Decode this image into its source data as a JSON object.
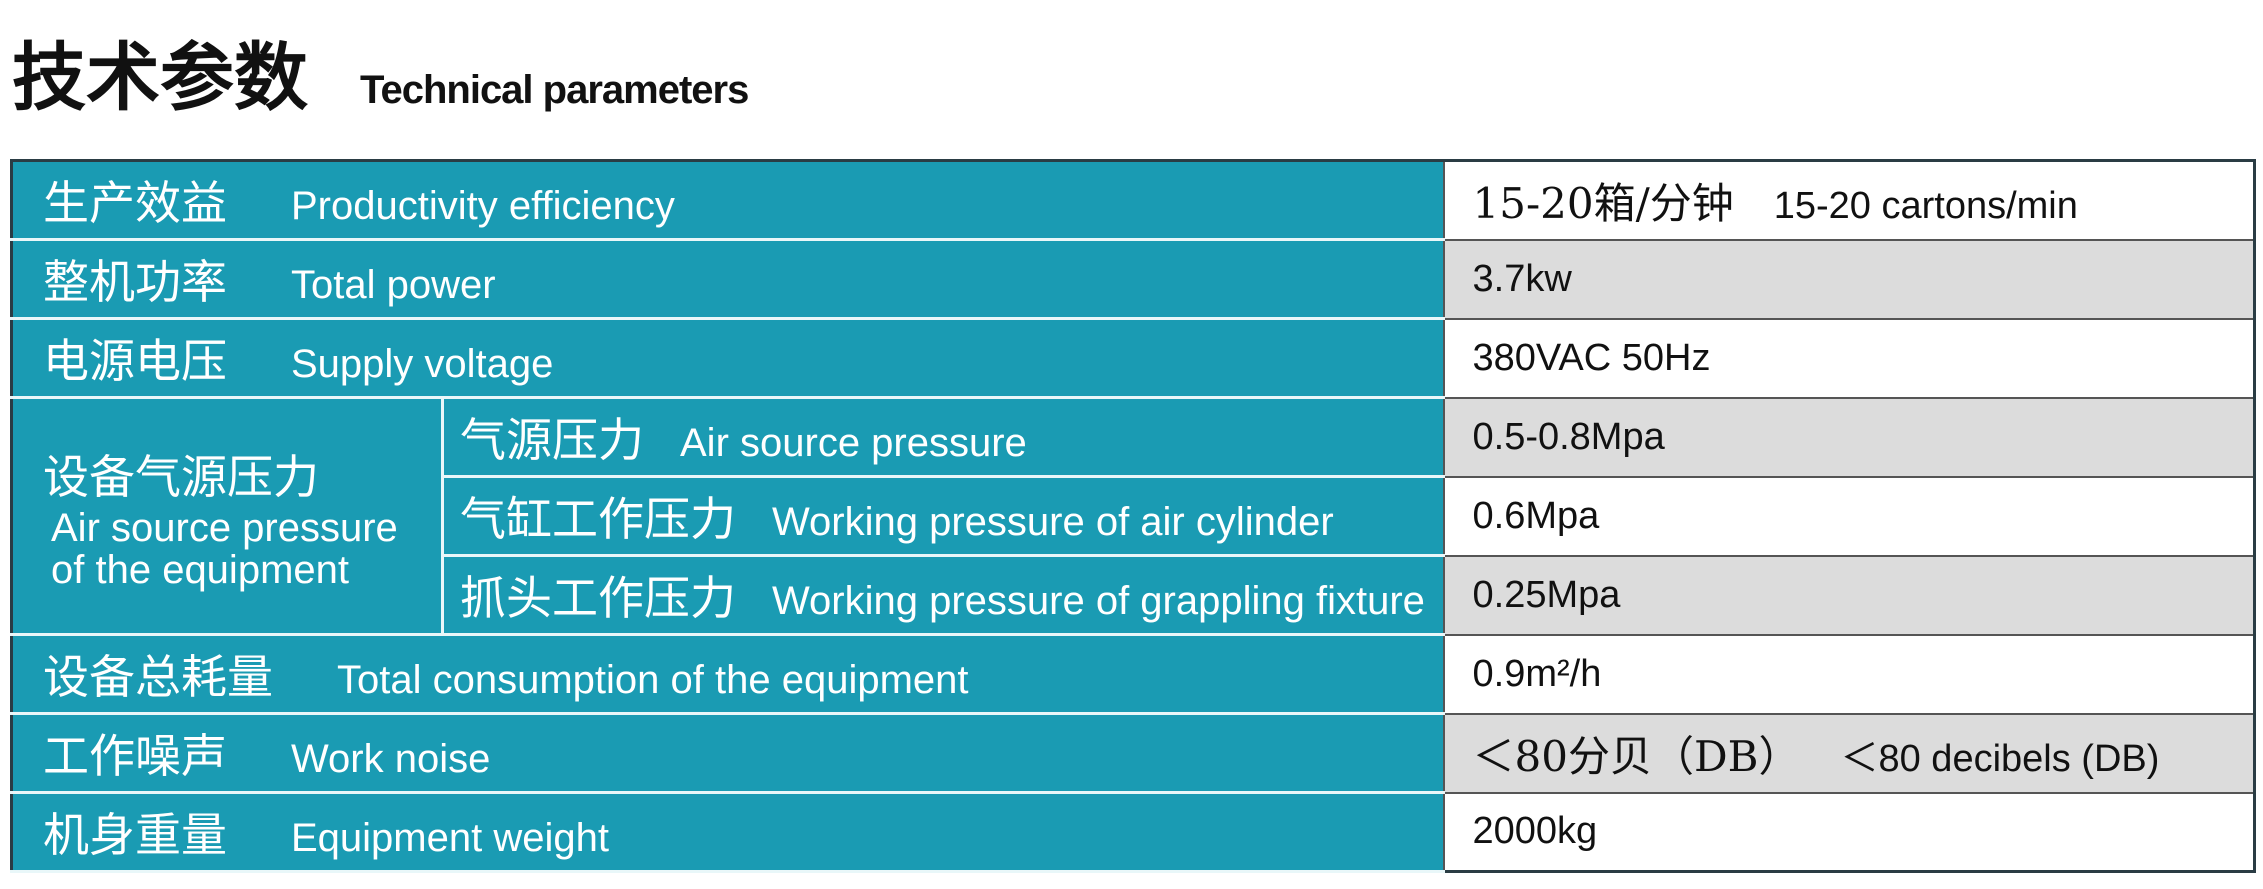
{
  "title": {
    "zh": "技术参数",
    "en": "Technical parameters"
  },
  "table": {
    "rows": [
      {
        "label_zh": "生产效益",
        "label_en": "Productivity efficiency",
        "value_zh": "15-20箱/分钟",
        "value": "15-20 cartons/min"
      },
      {
        "label_zh": "整机功率",
        "label_en": "Total power",
        "value": "3.7kw"
      },
      {
        "label_zh": "电源电压",
        "label_en": "Supply voltage",
        "value": "380VAC  50Hz"
      },
      {
        "group_zh": "设备气源压力",
        "group_en": "Air source pressure of the equipment",
        "items": [
          {
            "label_zh": "气源压力",
            "label_en": "Air source pressure",
            "value": "0.5-0.8Mpa"
          },
          {
            "label_zh": "气缸工作压力",
            "label_en": "Working pressure of air cylinder",
            "value": "0.6Mpa"
          },
          {
            "label_zh": "抓头工作压力",
            "label_en": "Working pressure of grappling fixture",
            "value": "0.25Mpa"
          }
        ]
      },
      {
        "label_zh": "设备总耗量",
        "label_en": "Total consumption of the equipment",
        "value": "0.9m²/h"
      },
      {
        "label_zh": "工作噪声",
        "label_en": "Work noise",
        "value_zh": "＜80分贝（DB）",
        "value": "＜80 decibels (DB)"
      },
      {
        "label_zh": "机身重量",
        "label_en": "Equipment weight",
        "value": "2000kg"
      }
    ]
  }
}
